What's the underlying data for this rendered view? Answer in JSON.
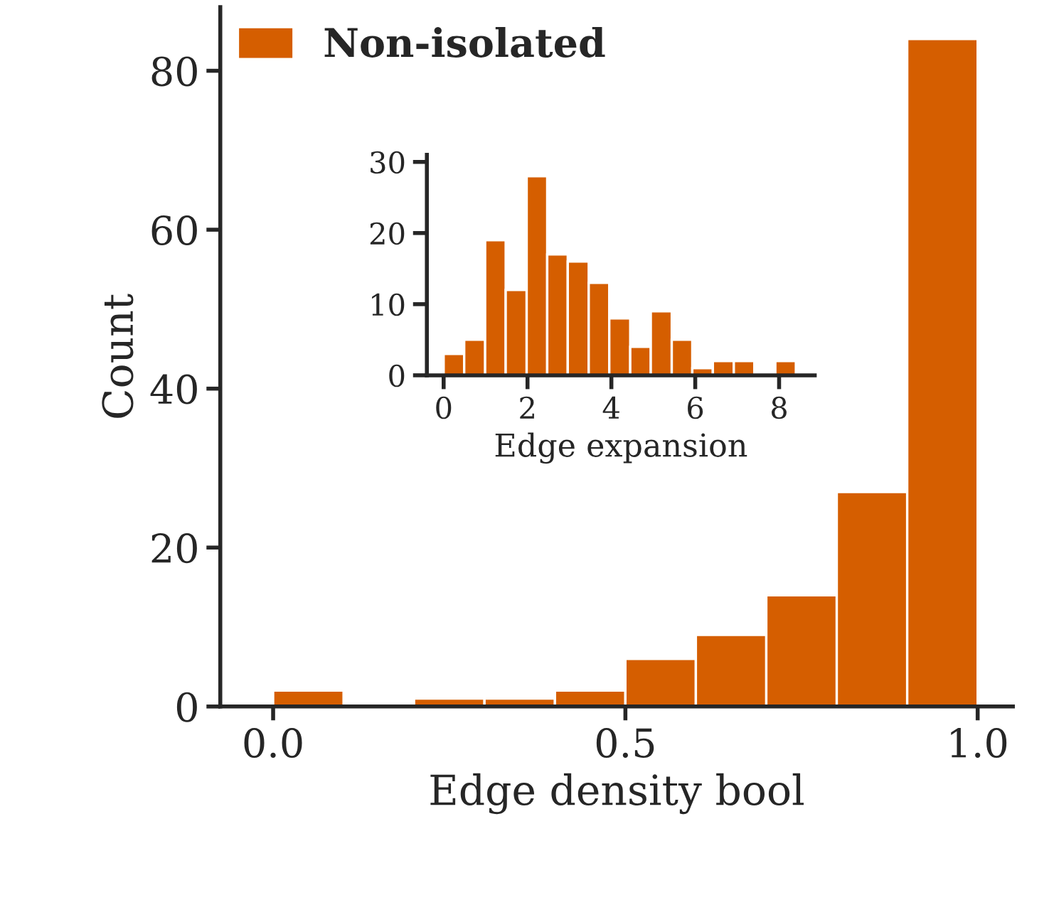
{
  "chart_data": [
    {
      "type": "histogram",
      "xlabel": "Edge density bool",
      "ylabel": "Count",
      "bins": [
        0,
        0.1,
        0.2,
        0.3,
        0.4,
        0.5,
        0.6,
        0.7,
        0.8,
        0.9,
        1.0
      ],
      "series": [
        {
          "name": "Non-isolated",
          "color": "#d55e00",
          "values": [
            2,
            0,
            1,
            1,
            2,
            6,
            9,
            14,
            27,
            84
          ]
        }
      ],
      "xlim": [
        -0.075,
        1.05
      ],
      "ylim": [
        0,
        88
      ],
      "xticks": [
        {
          "value": 0,
          "label": "0.0"
        },
        0.5,
        {
          "value": 1,
          "label": "1.0"
        }
      ],
      "yticks": [
        0,
        20,
        40,
        60,
        80
      ],
      "legend": "top left",
      "grid": false
    },
    {
      "type": "histogram",
      "xlabel": "Edge expansion",
      "bins": [
        0,
        0.49,
        0.99,
        1.48,
        1.98,
        2.47,
        2.96,
        3.46,
        3.95,
        4.45,
        4.94,
        5.44,
        5.93,
        6.42,
        6.92,
        7.41,
        7.91,
        8.4
      ],
      "series": [
        {
          "color": "#d55e00",
          "values": [
            3,
            5,
            19,
            12,
            28,
            17,
            16,
            13,
            8,
            4,
            9,
            5,
            1,
            2,
            2,
            0,
            2
          ]
        }
      ],
      "xlim": [
        -0.4,
        8.85
      ],
      "ylim": [
        0,
        31
      ],
      "xticks": [
        0,
        2,
        4,
        6,
        8
      ],
      "yticks": [
        0,
        10,
        20,
        30
      ],
      "grid": false
    }
  ]
}
